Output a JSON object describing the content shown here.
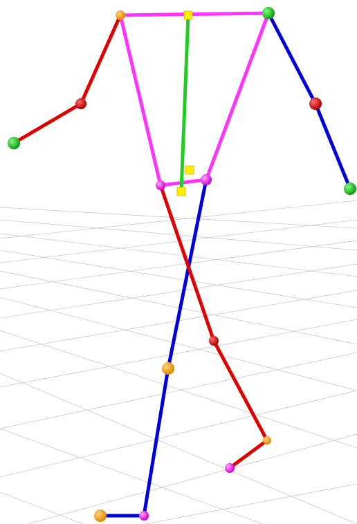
{
  "colors": {
    "background": "#ffffff",
    "grid": "#c8c8c8",
    "red": "#e00000",
    "blue": "#0000dd",
    "magenta": "#ff33ff",
    "green": "#22cc22",
    "orange": "#f5a300",
    "yellow": "#ffee00"
  },
  "skeleton": {
    "joints": [
      {
        "name": "joint-right-shoulder",
        "color": "orange"
      },
      {
        "name": "joint-left-shoulder",
        "color": "green"
      },
      {
        "name": "joint-right-elbow",
        "color": "red"
      },
      {
        "name": "joint-right-wrist",
        "color": "green"
      },
      {
        "name": "joint-left-elbow",
        "color": "red"
      },
      {
        "name": "joint-left-wrist",
        "color": "green"
      },
      {
        "name": "joint-right-hip",
        "color": "magenta"
      },
      {
        "name": "joint-left-hip",
        "color": "magenta"
      },
      {
        "name": "joint-right-knee",
        "color": "red"
      },
      {
        "name": "joint-right-ankle",
        "color": "orange"
      },
      {
        "name": "joint-right-toe",
        "color": "magenta"
      },
      {
        "name": "joint-left-knee",
        "color": "orange"
      },
      {
        "name": "joint-left-ankle",
        "color": "magenta"
      },
      {
        "name": "joint-left-toe",
        "color": "orange"
      }
    ],
    "bones": [
      {
        "name": "bone-right-upper-arm",
        "color": "red"
      },
      {
        "name": "bone-right-forearm",
        "color": "red"
      },
      {
        "name": "bone-left-upper-arm",
        "color": "blue"
      },
      {
        "name": "bone-left-forearm",
        "color": "blue"
      },
      {
        "name": "bone-shoulder-line",
        "color": "magenta"
      },
      {
        "name": "bone-right-torso-side",
        "color": "magenta"
      },
      {
        "name": "bone-left-torso-side",
        "color": "magenta"
      },
      {
        "name": "bone-hip-line",
        "color": "magenta"
      },
      {
        "name": "bone-spine",
        "color": "green"
      },
      {
        "name": "bone-right-thigh",
        "color": "red"
      },
      {
        "name": "bone-right-shin",
        "color": "red"
      },
      {
        "name": "bone-right-foot",
        "color": "red"
      },
      {
        "name": "bone-left-thigh",
        "color": "blue"
      },
      {
        "name": "bone-left-shin",
        "color": "blue"
      },
      {
        "name": "bone-left-foot",
        "color": "blue"
      }
    ],
    "markers": [
      {
        "name": "marker-neck",
        "color": "yellow"
      },
      {
        "name": "marker-spine-mid",
        "color": "yellow"
      },
      {
        "name": "marker-pelvis",
        "color": "yellow"
      }
    ]
  }
}
